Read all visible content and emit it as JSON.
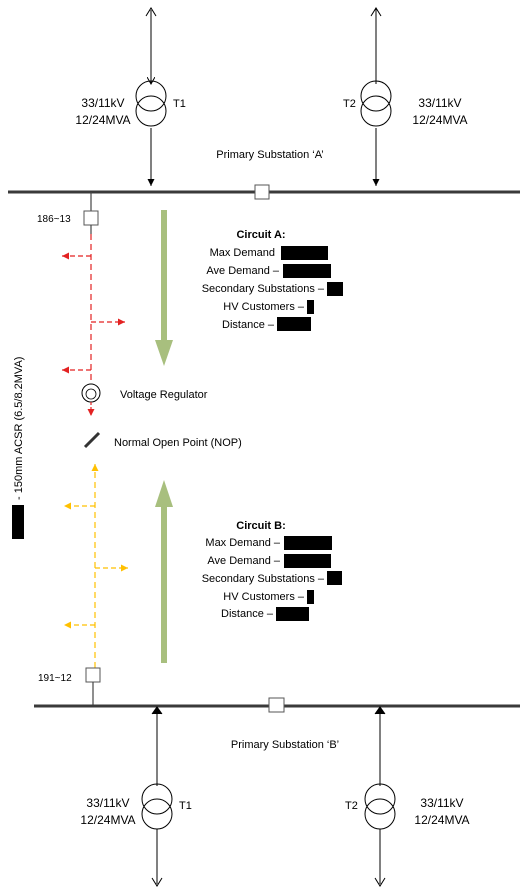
{
  "substation_a": {
    "title": "Primary Substation ‘A’",
    "t1": {
      "label": "T1",
      "rating_kv": "33/11kV",
      "rating_mva": "12/24MVA"
    },
    "t2": {
      "label": "T2",
      "rating_kv": "33/11kV",
      "rating_mva": "12/24MVA"
    }
  },
  "substation_b": {
    "title": "Primary Substation ‘B’",
    "t1": {
      "label": "T1",
      "rating_kv": "33/11kV",
      "rating_mva": "12/24MVA"
    },
    "t2": {
      "label": "T2",
      "rating_kv": "33/11kV",
      "rating_mva": "12/24MVA"
    }
  },
  "breakers": {
    "feeder_a": "186~13",
    "feeder_b": "191~12"
  },
  "voltage_regulator": "Voltage Regulator",
  "nop": "Normal Open Point (NOP)",
  "conductor": "- 150mm ACSR (6.5/8.2MVA)",
  "circuit_a": {
    "title": "Circuit A:",
    "max_demand": "Max Demand",
    "ave_demand": "Ave Demand –",
    "secondary_substations": "Secondary Substations –",
    "hv_customers": "HV Customers –",
    "distance": "Distance –"
  },
  "circuit_b": {
    "title": "Circuit B:",
    "max_demand": "Max Demand –",
    "ave_demand": "Ave Demand –",
    "secondary_substations": "Secondary Substations –",
    "hv_customers": "HV Customers –",
    "distance": "Distance –"
  },
  "colors": {
    "busbar": "#3a3a3a",
    "circuit_a_feeder": "#e32222",
    "circuit_b_feeder": "#ffc000",
    "flow_arrow": "#a8bf7e",
    "redaction": "#000000"
  }
}
